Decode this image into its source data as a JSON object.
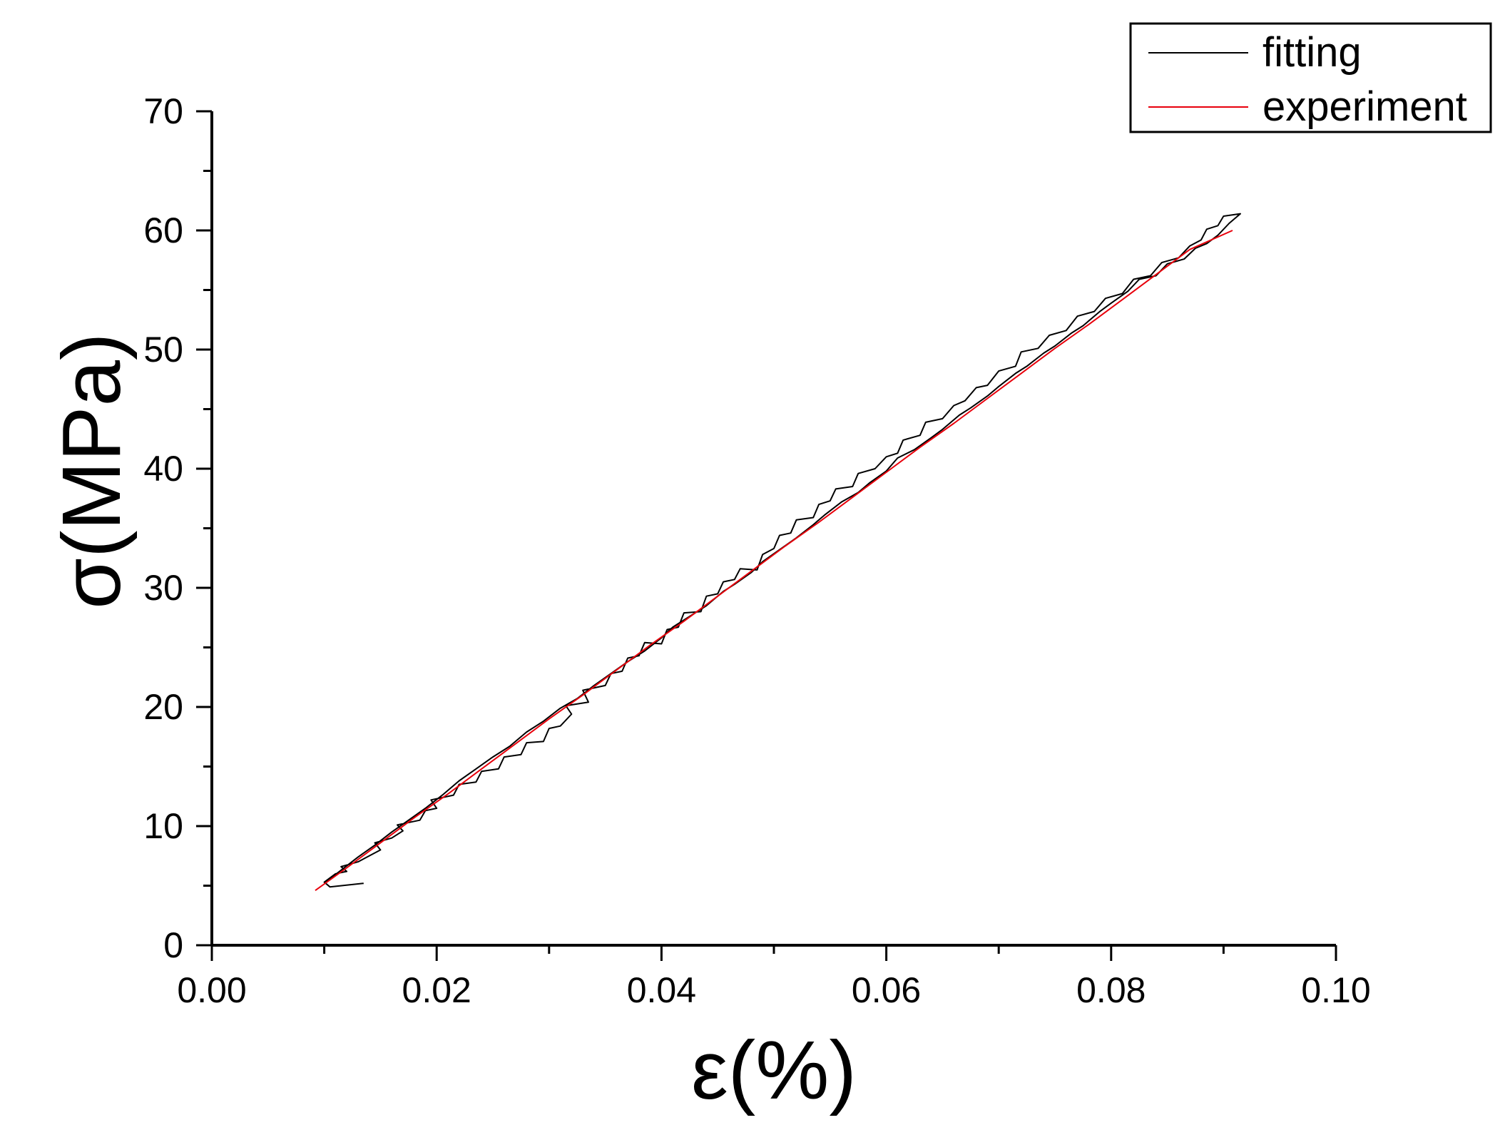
{
  "chart_data": {
    "type": "line",
    "xlabel": "ε(%)",
    "ylabel": "σ(MPa)",
    "xlim": [
      0.0,
      0.1
    ],
    "ylim": [
      0,
      70
    ],
    "x_ticks": [
      "0.00",
      "0.02",
      "0.04",
      "0.06",
      "0.08",
      "0.10"
    ],
    "y_ticks": [
      "0",
      "10",
      "20",
      "30",
      "40",
      "50",
      "60",
      "70"
    ],
    "grid": false,
    "legend_position": "top-right",
    "series": [
      {
        "name": "fitting",
        "color": "#000000",
        "points": [
          [
            0.0135,
            5.2
          ],
          [
            0.0105,
            4.9
          ],
          [
            0.01,
            5.3
          ],
          [
            0.011,
            6.0
          ],
          [
            0.012,
            6.2
          ],
          [
            0.0115,
            6.6
          ],
          [
            0.013,
            7.0
          ],
          [
            0.014,
            7.5
          ],
          [
            0.015,
            8.0
          ],
          [
            0.0145,
            8.6
          ],
          [
            0.016,
            9.0
          ],
          [
            0.017,
            9.6
          ],
          [
            0.0165,
            10.1
          ],
          [
            0.0185,
            10.5
          ],
          [
            0.019,
            11.3
          ],
          [
            0.02,
            11.5
          ],
          [
            0.0195,
            12.2
          ],
          [
            0.0215,
            12.6
          ],
          [
            0.022,
            13.5
          ],
          [
            0.0235,
            13.7
          ],
          [
            0.024,
            14.6
          ],
          [
            0.0255,
            14.8
          ],
          [
            0.026,
            15.8
          ],
          [
            0.0275,
            16.0
          ],
          [
            0.028,
            17.0
          ],
          [
            0.0295,
            17.1
          ],
          [
            0.03,
            18.2
          ],
          [
            0.031,
            18.4
          ],
          [
            0.032,
            19.4
          ],
          [
            0.0315,
            20.1
          ],
          [
            0.0335,
            20.4
          ],
          [
            0.033,
            21.4
          ],
          [
            0.035,
            21.8
          ],
          [
            0.0355,
            22.8
          ],
          [
            0.0365,
            23.0
          ],
          [
            0.037,
            24.1
          ],
          [
            0.038,
            24.3
          ],
          [
            0.0385,
            25.4
          ],
          [
            0.04,
            25.3
          ],
          [
            0.0405,
            26.5
          ],
          [
            0.0415,
            26.7
          ],
          [
            0.042,
            27.9
          ],
          [
            0.0435,
            28.0
          ],
          [
            0.044,
            29.3
          ],
          [
            0.045,
            29.5
          ],
          [
            0.0455,
            30.5
          ],
          [
            0.0465,
            30.7
          ],
          [
            0.047,
            31.6
          ],
          [
            0.0485,
            31.5
          ],
          [
            0.049,
            32.8
          ],
          [
            0.05,
            33.3
          ],
          [
            0.0505,
            34.4
          ],
          [
            0.0515,
            34.6
          ],
          [
            0.052,
            35.7
          ],
          [
            0.0535,
            35.9
          ],
          [
            0.054,
            37.0
          ],
          [
            0.055,
            37.3
          ],
          [
            0.0555,
            38.3
          ],
          [
            0.057,
            38.5
          ],
          [
            0.0575,
            39.6
          ],
          [
            0.059,
            40.0
          ],
          [
            0.06,
            41.0
          ],
          [
            0.061,
            41.3
          ],
          [
            0.0615,
            42.4
          ],
          [
            0.063,
            42.8
          ],
          [
            0.0635,
            43.9
          ],
          [
            0.065,
            44.2
          ],
          [
            0.066,
            45.3
          ],
          [
            0.067,
            45.7
          ],
          [
            0.068,
            46.8
          ],
          [
            0.069,
            47.0
          ],
          [
            0.07,
            48.2
          ],
          [
            0.0715,
            48.6
          ],
          [
            0.072,
            49.8
          ],
          [
            0.0735,
            50.1
          ],
          [
            0.0745,
            51.2
          ],
          [
            0.076,
            51.6
          ],
          [
            0.077,
            52.8
          ],
          [
            0.0785,
            53.2
          ],
          [
            0.0795,
            54.3
          ],
          [
            0.081,
            54.7
          ],
          [
            0.082,
            55.9
          ],
          [
            0.0835,
            56.2
          ],
          [
            0.0845,
            57.3
          ],
          [
            0.086,
            57.7
          ],
          [
            0.087,
            58.7
          ],
          [
            0.088,
            59.2
          ],
          [
            0.0885,
            60.1
          ],
          [
            0.0895,
            60.4
          ],
          [
            0.09,
            61.2
          ],
          [
            0.0915,
            61.4
          ],
          [
            0.0905,
            60.6
          ],
          [
            0.0895,
            59.6
          ],
          [
            0.0885,
            58.9
          ],
          [
            0.0875,
            58.5
          ],
          [
            0.0865,
            57.6
          ],
          [
            0.085,
            57.2
          ],
          [
            0.084,
            56.2
          ],
          [
            0.0825,
            55.9
          ],
          [
            0.0815,
            54.9
          ],
          [
            0.08,
            53.9
          ],
          [
            0.079,
            53.2
          ],
          [
            0.0775,
            52.0
          ],
          [
            0.0765,
            51.4
          ],
          [
            0.075,
            50.3
          ],
          [
            0.074,
            49.7
          ],
          [
            0.0725,
            48.6
          ],
          [
            0.0715,
            48.0
          ],
          [
            0.07,
            46.9
          ],
          [
            0.069,
            46.1
          ],
          [
            0.0675,
            45.1
          ],
          [
            0.0665,
            44.5
          ],
          [
            0.065,
            43.3
          ],
          [
            0.064,
            42.6
          ],
          [
            0.0625,
            41.6
          ],
          [
            0.061,
            40.9
          ],
          [
            0.06,
            39.8
          ],
          [
            0.0585,
            38.8
          ],
          [
            0.0575,
            38.0
          ],
          [
            0.056,
            37.2
          ],
          [
            0.0545,
            36.1
          ],
          [
            0.0535,
            35.3
          ],
          [
            0.052,
            34.2
          ],
          [
            0.0505,
            33.2
          ],
          [
            0.049,
            32.2
          ],
          [
            0.048,
            31.3
          ],
          [
            0.0465,
            30.3
          ],
          [
            0.0455,
            29.7
          ],
          [
            0.044,
            28.5
          ],
          [
            0.0425,
            27.6
          ],
          [
            0.041,
            26.7
          ],
          [
            0.04,
            25.8
          ],
          [
            0.0385,
            24.7
          ],
          [
            0.037,
            23.8
          ],
          [
            0.0355,
            22.8
          ],
          [
            0.034,
            21.8
          ],
          [
            0.0325,
            20.7
          ],
          [
            0.031,
            19.9
          ],
          [
            0.0295,
            18.8
          ],
          [
            0.028,
            17.9
          ],
          [
            0.0265,
            16.7
          ],
          [
            0.025,
            15.8
          ],
          [
            0.0235,
            14.8
          ],
          [
            0.022,
            13.8
          ],
          [
            0.0205,
            12.6
          ],
          [
            0.019,
            11.5
          ],
          [
            0.0175,
            10.5
          ],
          [
            0.016,
            9.5
          ],
          [
            0.0145,
            8.4
          ],
          [
            0.013,
            7.4
          ],
          [
            0.0115,
            6.3
          ],
          [
            0.01,
            5.2
          ]
        ]
      },
      {
        "name": "experiment",
        "color": "#e8000b",
        "points": [
          [
            0.0092,
            4.6
          ],
          [
            0.012,
            6.5
          ],
          [
            0.015,
            8.6
          ],
          [
            0.018,
            10.7
          ],
          [
            0.021,
            12.7
          ],
          [
            0.024,
            14.8
          ],
          [
            0.027,
            16.9
          ],
          [
            0.03,
            19.0
          ],
          [
            0.033,
            21.0
          ],
          [
            0.036,
            23.1
          ],
          [
            0.039,
            25.2
          ],
          [
            0.042,
            27.2
          ],
          [
            0.045,
            29.3
          ],
          [
            0.048,
            31.4
          ],
          [
            0.051,
            33.5
          ],
          [
            0.054,
            35.5
          ],
          [
            0.057,
            37.6
          ],
          [
            0.06,
            39.7
          ],
          [
            0.063,
            41.8
          ],
          [
            0.066,
            43.8
          ],
          [
            0.069,
            45.9
          ],
          [
            0.072,
            48.0
          ],
          [
            0.075,
            50.1
          ],
          [
            0.078,
            52.1
          ],
          [
            0.081,
            54.2
          ],
          [
            0.084,
            56.3
          ],
          [
            0.087,
            58.4
          ],
          [
            0.0908,
            60.0
          ]
        ]
      }
    ]
  }
}
